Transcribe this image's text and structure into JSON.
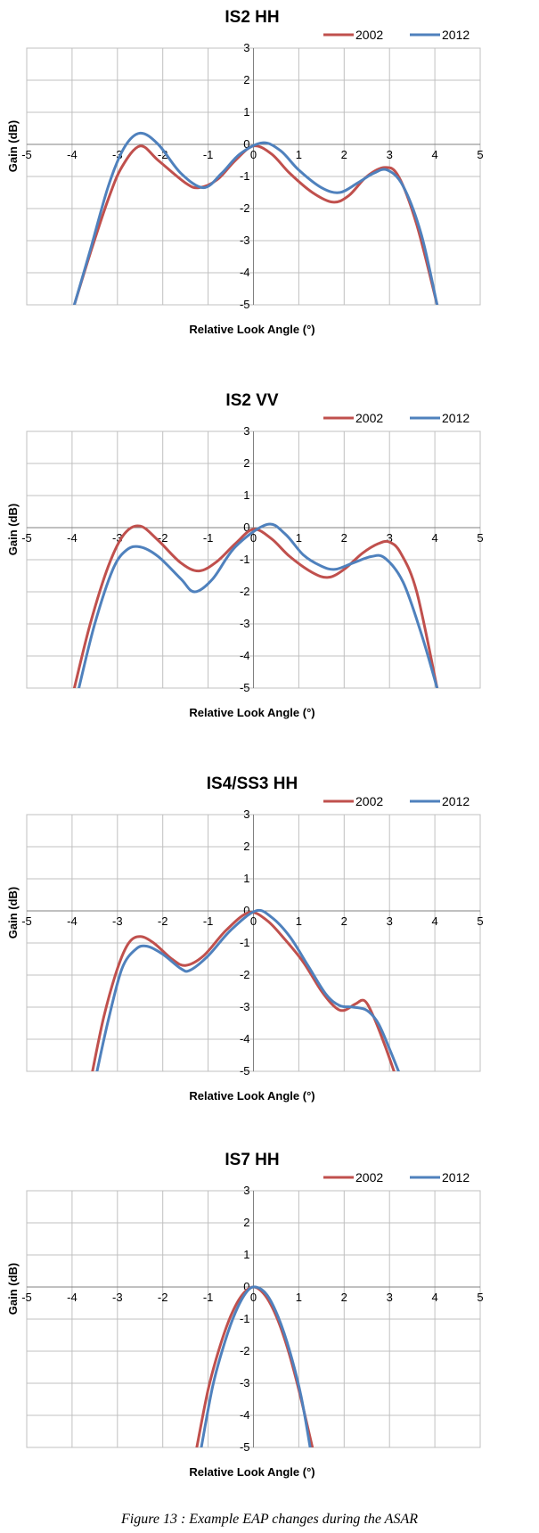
{
  "caption": "Figure 13 : Example EAP changes during the ASAR",
  "colors": {
    "2002": "#c0504d",
    "2012": "#4f81bd",
    "grid": "#c0c0c0"
  },
  "chart_data": [
    {
      "type": "line",
      "title": "IS2 HH",
      "xlabel": "Relative Look Angle (°)",
      "ylabel": "Gain (dB)",
      "xlim": [
        -5,
        5
      ],
      "ylim": [
        -5,
        3
      ],
      "xticks": [
        -5,
        -4,
        -3,
        -2,
        -1,
        0,
        1,
        2,
        3,
        4,
        5
      ],
      "yticks": [
        3,
        2,
        1,
        0,
        -1,
        -2,
        -3,
        -4,
        -5
      ],
      "grid": true,
      "legend": "top-right",
      "series": [
        {
          "name": "2002",
          "color": "#c0504d",
          "points": [
            [
              -3.95,
              -5
            ],
            [
              -3.6,
              -3.4
            ],
            [
              -3.2,
              -1.7
            ],
            [
              -2.9,
              -0.7
            ],
            [
              -2.5,
              -0.05
            ],
            [
              -2.1,
              -0.5
            ],
            [
              -1.5,
              -1.2
            ],
            [
              -1.2,
              -1.35
            ],
            [
              -0.8,
              -1.1
            ],
            [
              -0.4,
              -0.5
            ],
            [
              0,
              -0.05
            ],
            [
              0.4,
              -0.3
            ],
            [
              0.8,
              -0.9
            ],
            [
              1.3,
              -1.5
            ],
            [
              1.75,
              -1.8
            ],
            [
              2.1,
              -1.6
            ],
            [
              2.5,
              -1.0
            ],
            [
              2.9,
              -0.72
            ],
            [
              3.2,
              -1.0
            ],
            [
              3.6,
              -2.5
            ],
            [
              4.05,
              -5
            ]
          ]
        },
        {
          "name": "2012",
          "color": "#4f81bd",
          "points": [
            [
              -3.95,
              -5
            ],
            [
              -3.6,
              -3.3
            ],
            [
              -3.2,
              -1.3
            ],
            [
              -2.85,
              -0.1
            ],
            [
              -2.5,
              0.35
            ],
            [
              -2.1,
              0
            ],
            [
              -1.6,
              -0.9
            ],
            [
              -1.1,
              -1.35
            ],
            [
              -0.7,
              -0.9
            ],
            [
              -0.3,
              -0.3
            ],
            [
              0.2,
              0.05
            ],
            [
              0.6,
              -0.2
            ],
            [
              1.0,
              -0.8
            ],
            [
              1.5,
              -1.35
            ],
            [
              1.9,
              -1.5
            ],
            [
              2.3,
              -1.2
            ],
            [
              2.65,
              -0.9
            ],
            [
              2.95,
              -0.8
            ],
            [
              3.3,
              -1.3
            ],
            [
              3.7,
              -2.8
            ],
            [
              4.05,
              -5
            ]
          ]
        }
      ]
    },
    {
      "type": "line",
      "title": "IS2 VV",
      "xlabel": "Relative Look Angle (°)",
      "ylabel": "Gain (dB)",
      "xlim": [
        -5,
        5
      ],
      "ylim": [
        -5,
        3
      ],
      "xticks": [
        -5,
        -4,
        -3,
        -2,
        -1,
        0,
        1,
        2,
        3,
        4,
        5
      ],
      "yticks": [
        3,
        2,
        1,
        0,
        -1,
        -2,
        -3,
        -4,
        -5
      ],
      "grid": true,
      "legend": "top-right",
      "series": [
        {
          "name": "2002",
          "color": "#c0504d",
          "points": [
            [
              -3.95,
              -5
            ],
            [
              -3.6,
              -3.0
            ],
            [
              -3.2,
              -1.2
            ],
            [
              -2.85,
              -0.2
            ],
            [
              -2.5,
              0.05
            ],
            [
              -2.1,
              -0.4
            ],
            [
              -1.6,
              -1.1
            ],
            [
              -1.2,
              -1.35
            ],
            [
              -0.8,
              -1.05
            ],
            [
              -0.4,
              -0.5
            ],
            [
              0,
              -0.05
            ],
            [
              0.4,
              -0.35
            ],
            [
              0.8,
              -0.9
            ],
            [
              1.3,
              -1.4
            ],
            [
              1.65,
              -1.55
            ],
            [
              2.0,
              -1.3
            ],
            [
              2.4,
              -0.8
            ],
            [
              2.75,
              -0.5
            ],
            [
              3.0,
              -0.45
            ],
            [
              3.25,
              -0.8
            ],
            [
              3.6,
              -2.0
            ],
            [
              4.05,
              -5
            ]
          ]
        },
        {
          "name": "2012",
          "color": "#4f81bd",
          "points": [
            [
              -3.85,
              -5
            ],
            [
              -3.5,
              -3.0
            ],
            [
              -3.1,
              -1.3
            ],
            [
              -2.8,
              -0.7
            ],
            [
              -2.5,
              -0.6
            ],
            [
              -2.1,
              -0.9
            ],
            [
              -1.6,
              -1.6
            ],
            [
              -1.3,
              -2.0
            ],
            [
              -0.9,
              -1.6
            ],
            [
              -0.4,
              -0.6
            ],
            [
              0.3,
              0.1
            ],
            [
              0.7,
              -0.2
            ],
            [
              1.1,
              -0.85
            ],
            [
              1.5,
              -1.2
            ],
            [
              1.8,
              -1.3
            ],
            [
              2.2,
              -1.1
            ],
            [
              2.6,
              -0.9
            ],
            [
              2.9,
              -0.95
            ],
            [
              3.3,
              -1.7
            ],
            [
              3.7,
              -3.3
            ],
            [
              4.05,
              -5
            ]
          ]
        }
      ]
    },
    {
      "type": "line",
      "title": "IS4/SS3 HH",
      "xlabel": "Relative Look Angle (°)",
      "ylabel": "Gain (dB)",
      "xlim": [
        -5,
        5
      ],
      "ylim": [
        -5,
        3
      ],
      "xticks": [
        -5,
        -4,
        -3,
        -2,
        -1,
        0,
        1,
        2,
        3,
        4,
        5
      ],
      "yticks": [
        3,
        2,
        1,
        0,
        -1,
        -2,
        -3,
        -4,
        -5
      ],
      "grid": true,
      "legend": "top-right",
      "series": [
        {
          "name": "2002",
          "color": "#c0504d",
          "points": [
            [
              -3.55,
              -5
            ],
            [
              -3.3,
              -3.3
            ],
            [
              -3.0,
              -1.8
            ],
            [
              -2.75,
              -1.0
            ],
            [
              -2.5,
              -0.8
            ],
            [
              -2.2,
              -1.0
            ],
            [
              -1.8,
              -1.5
            ],
            [
              -1.5,
              -1.7
            ],
            [
              -1.1,
              -1.4
            ],
            [
              -0.6,
              -0.6
            ],
            [
              -0.1,
              -0.05
            ],
            [
              0.3,
              -0.3
            ],
            [
              0.7,
              -0.9
            ],
            [
              1.1,
              -1.6
            ],
            [
              1.5,
              -2.5
            ],
            [
              1.8,
              -3.0
            ],
            [
              2.0,
              -3.1
            ],
            [
              2.25,
              -2.9
            ],
            [
              2.45,
              -2.8
            ],
            [
              2.65,
              -3.3
            ],
            [
              2.9,
              -4.2
            ],
            [
              3.1,
              -5
            ]
          ]
        },
        {
          "name": "2012",
          "color": "#4f81bd",
          "points": [
            [
              -3.45,
              -5
            ],
            [
              -3.2,
              -3.4
            ],
            [
              -2.9,
              -1.8
            ],
            [
              -2.6,
              -1.2
            ],
            [
              -2.35,
              -1.1
            ],
            [
              -2.0,
              -1.35
            ],
            [
              -1.6,
              -1.8
            ],
            [
              -1.4,
              -1.85
            ],
            [
              -1.0,
              -1.4
            ],
            [
              -0.5,
              -0.6
            ],
            [
              0.05,
              0
            ],
            [
              0.4,
              -0.2
            ],
            [
              0.8,
              -0.8
            ],
            [
              1.2,
              -1.7
            ],
            [
              1.6,
              -2.6
            ],
            [
              1.9,
              -2.95
            ],
            [
              2.2,
              -3.0
            ],
            [
              2.5,
              -3.1
            ],
            [
              2.75,
              -3.5
            ],
            [
              3.0,
              -4.3
            ],
            [
              3.2,
              -5
            ]
          ]
        }
      ]
    },
    {
      "type": "line",
      "title": "IS7 HH",
      "xlabel": "Relative Look Angle (°)",
      "ylabel": "Gain (dB)",
      "xlim": [
        -5,
        5
      ],
      "ylim": [
        -5,
        3
      ],
      "xticks": [
        -5,
        -4,
        -3,
        -2,
        -1,
        0,
        1,
        2,
        3,
        4,
        5
      ],
      "yticks": [
        3,
        2,
        1,
        0,
        -1,
        -2,
        -3,
        -4,
        -5
      ],
      "grid": true,
      "legend": "top-right",
      "series": [
        {
          "name": "2002",
          "color": "#c0504d",
          "points": [
            [
              -1.25,
              -5
            ],
            [
              -1.0,
              -3.2
            ],
            [
              -0.75,
              -1.9
            ],
            [
              -0.5,
              -0.9
            ],
            [
              -0.25,
              -0.25
            ],
            [
              0,
              0
            ],
            [
              0.25,
              -0.25
            ],
            [
              0.5,
              -0.9
            ],
            [
              0.75,
              -1.9
            ],
            [
              1.0,
              -3.2
            ],
            [
              1.3,
              -5
            ]
          ]
        },
        {
          "name": "2012",
          "color": "#4f81bd",
          "points": [
            [
              -1.15,
              -5
            ],
            [
              -0.9,
              -3.1
            ],
            [
              -0.65,
              -1.8
            ],
            [
              -0.4,
              -0.8
            ],
            [
              -0.15,
              -0.15
            ],
            [
              0.05,
              0
            ],
            [
              0.3,
              -0.25
            ],
            [
              0.55,
              -0.95
            ],
            [
              0.8,
              -2.0
            ],
            [
              1.05,
              -3.4
            ],
            [
              1.25,
              -5
            ]
          ]
        }
      ]
    }
  ]
}
